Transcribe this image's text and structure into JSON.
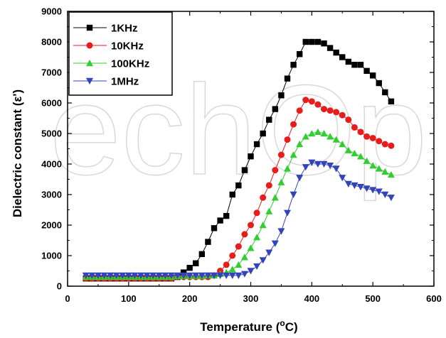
{
  "chart_data": {
    "type": "scatter",
    "xlabel": "Temperature (",
    "xlabel_sup": "o",
    "xlabel_tail": "C)",
    "ylabel": "Dielectric constant (ε')",
    "xlim": [
      0,
      600
    ],
    "ylim": [
      0,
      9000
    ],
    "xticks": [
      0,
      100,
      200,
      300,
      400,
      500,
      600
    ],
    "yticks": [
      0,
      1000,
      2000,
      3000,
      4000,
      5000,
      6000,
      7000,
      8000,
      9000
    ],
    "legend_position": "top-left",
    "watermark": "echOp",
    "series": [
      {
        "name": "1KHz",
        "marker": "square",
        "color": "#000000",
        "x": [
          30,
          40,
          50,
          60,
          70,
          80,
          90,
          100,
          110,
          120,
          130,
          140,
          150,
          160,
          170,
          180,
          190,
          200,
          210,
          220,
          230,
          240,
          250,
          260,
          270,
          280,
          290,
          300,
          310,
          320,
          330,
          340,
          350,
          360,
          370,
          380,
          390,
          400,
          410,
          420,
          430,
          440,
          450,
          460,
          470,
          480,
          490,
          500,
          510,
          520,
          530
        ],
        "y": [
          250,
          250,
          250,
          250,
          250,
          250,
          250,
          250,
          250,
          250,
          250,
          250,
          250,
          250,
          250,
          300,
          450,
          600,
          750,
          1050,
          1450,
          1900,
          2150,
          2300,
          3000,
          3300,
          3800,
          4250,
          4650,
          5000,
          5450,
          5800,
          6250,
          6800,
          7250,
          7600,
          8000,
          8000,
          8000,
          7950,
          7800,
          7650,
          7500,
          7350,
          7250,
          7250,
          7050,
          6900,
          6650,
          6350,
          6050
        ]
      },
      {
        "name": "10KHz",
        "marker": "circle",
        "color": "#e81c1c",
        "x": [
          30,
          40,
          50,
          60,
          70,
          80,
          90,
          100,
          110,
          120,
          130,
          140,
          150,
          160,
          170,
          180,
          190,
          200,
          210,
          220,
          230,
          240,
          250,
          260,
          270,
          280,
          290,
          300,
          310,
          320,
          330,
          340,
          350,
          360,
          370,
          380,
          390,
          400,
          410,
          420,
          430,
          440,
          450,
          460,
          470,
          480,
          490,
          500,
          510,
          520,
          530
        ],
        "y": [
          250,
          250,
          250,
          250,
          250,
          250,
          250,
          250,
          250,
          250,
          250,
          250,
          250,
          250,
          250,
          300,
          300,
          300,
          300,
          300,
          300,
          350,
          500,
          700,
          1000,
          1300,
          1700,
          2000,
          2400,
          2900,
          3300,
          3800,
          4300,
          4800,
          5300,
          5750,
          6100,
          6050,
          5950,
          5800,
          5750,
          5700,
          5600,
          5450,
          5200,
          5050,
          4900,
          4850,
          4750,
          4650,
          4600
        ]
      },
      {
        "name": "100KHz",
        "marker": "triangle-up",
        "color": "#33cc33",
        "x": [
          30,
          40,
          50,
          60,
          70,
          80,
          90,
          100,
          110,
          120,
          130,
          140,
          150,
          160,
          170,
          180,
          190,
          200,
          210,
          220,
          230,
          240,
          250,
          260,
          270,
          280,
          290,
          300,
          310,
          320,
          330,
          340,
          350,
          360,
          370,
          380,
          390,
          400,
          410,
          420,
          430,
          440,
          450,
          460,
          470,
          480,
          490,
          500,
          510,
          520,
          530
        ],
        "y": [
          300,
          300,
          300,
          300,
          300,
          300,
          300,
          300,
          300,
          300,
          300,
          300,
          300,
          300,
          300,
          330,
          330,
          330,
          330,
          330,
          350,
          350,
          400,
          450,
          550,
          700,
          950,
          1250,
          1600,
          2000,
          2450,
          2900,
          3400,
          3850,
          4300,
          4650,
          4900,
          5000,
          5050,
          5000,
          4900,
          4800,
          4650,
          4450,
          4350,
          4250,
          4100,
          3950,
          3850,
          3750,
          3650
        ]
      },
      {
        "name": "1MHz",
        "marker": "triangle-down",
        "color": "#3344bb",
        "x": [
          30,
          40,
          50,
          60,
          70,
          80,
          90,
          100,
          110,
          120,
          130,
          140,
          150,
          160,
          170,
          180,
          190,
          200,
          210,
          220,
          230,
          240,
          250,
          260,
          270,
          280,
          290,
          300,
          310,
          320,
          330,
          340,
          350,
          360,
          370,
          380,
          390,
          400,
          410,
          420,
          430,
          440,
          450,
          460,
          470,
          480,
          490,
          500,
          510,
          520,
          530
        ],
        "y": [
          350,
          350,
          350,
          350,
          350,
          350,
          350,
          350,
          350,
          350,
          350,
          350,
          350,
          350,
          350,
          350,
          350,
          350,
          350,
          350,
          350,
          350,
          350,
          350,
          350,
          350,
          400,
          500,
          650,
          850,
          1100,
          1400,
          1800,
          2400,
          3000,
          3550,
          3900,
          4050,
          4000,
          4000,
          3950,
          3850,
          3550,
          3350,
          3300,
          3250,
          3200,
          3150,
          3100,
          3000,
          2900
        ]
      }
    ]
  }
}
